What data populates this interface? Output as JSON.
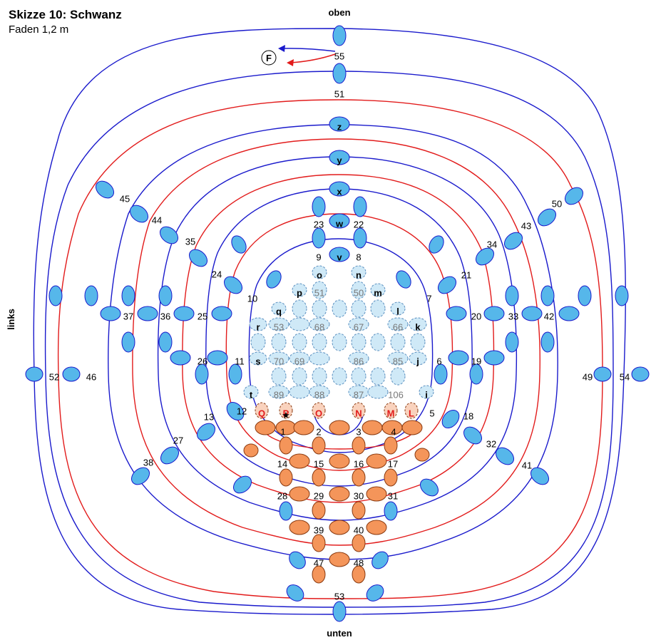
{
  "header": {
    "title": "Skizze 10: Schwanz",
    "subtitle": "Faden 1,2 m"
  },
  "directions": {
    "top": "oben",
    "bottom": "unten",
    "left": "links"
  },
  "start_marker": "F",
  "colors": {
    "blue_thread": "#1a1acc",
    "red_thread": "#e21b1b",
    "bead_blue": "#56b7ea",
    "bead_light": "#cfe9f7",
    "bead_orange": "#f4955a",
    "bead_pale_orange": "#f9d2bd",
    "label_red": "#e21b1b",
    "label_grey": "#777777"
  },
  "labels": {
    "n55": "55",
    "n51": "51",
    "z": "z",
    "y": "y",
    "x": "x",
    "n23": "23",
    "w": "w",
    "n22": "22",
    "n9": "9",
    "v": "v",
    "n8": "8",
    "o": "o",
    "n": "n",
    "p": "p",
    "g51": "51",
    "g50": "50",
    "m": "m",
    "q": "q",
    "l": "l",
    "r": "r",
    "g53": "53",
    "g68": "68",
    "g67": "67",
    "g66": "66",
    "k": "k",
    "s": "s",
    "g70": "70",
    "g69": "69",
    "g86": "86",
    "g85": "85",
    "j": "j",
    "t": "t",
    "g89": "89",
    "g88": "88",
    "g87": "87",
    "g106": "106",
    "i": "i",
    "Q": "Q",
    "P": "P",
    "O": "O",
    "N": "N",
    "M": "M",
    "L": "L",
    "n1": "1",
    "n2": "2",
    "n3": "3",
    "n4": "4",
    "n5": "5",
    "n6": "6",
    "n7": "7",
    "n10": "10",
    "n11": "11",
    "n12": "12",
    "n13": "13",
    "n14": "14",
    "n15": "15",
    "n16": "16",
    "n17": "17",
    "n18": "18",
    "n19": "19",
    "n20": "20",
    "n21": "21",
    "n24": "24",
    "n25": "25",
    "n26": "26",
    "n27": "27",
    "n28": "28",
    "n29": "29",
    "n30": "30",
    "n31": "31",
    "n32": "32",
    "n33": "33",
    "n34": "34",
    "n35": "35",
    "n36": "36",
    "n37": "37",
    "n38": "38",
    "n39": "39",
    "n40": "40",
    "n41": "41",
    "n42": "42",
    "n43": "43",
    "n44": "44",
    "n45": "45",
    "n46": "46",
    "n47": "47",
    "n48": "48",
    "n49": "49",
    "n50": "50",
    "n52": "52",
    "n53": "53",
    "n54": "54"
  }
}
